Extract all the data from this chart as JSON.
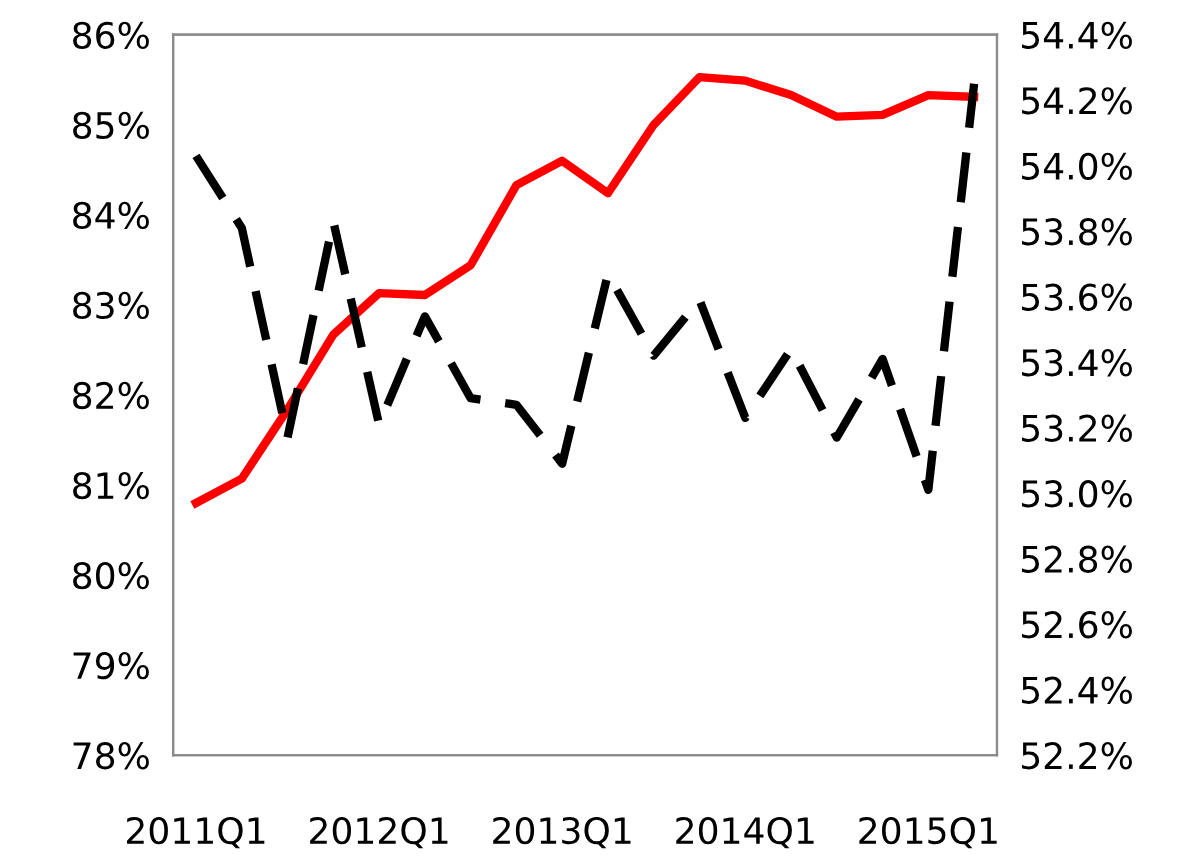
{
  "chart_data": {
    "type": "line",
    "categories": [
      "2011Q1",
      null,
      null,
      null,
      "2012Q1",
      null,
      null,
      null,
      "2013Q1",
      null,
      null,
      null,
      "2014Q1",
      null,
      null,
      null,
      "2015Q1",
      null
    ],
    "series": [
      {
        "color": "#ff0000",
        "line_style": "solid",
        "values": [
          80.8,
          81.07,
          81.84,
          82.67,
          83.13,
          83.11,
          83.44,
          84.33,
          84.6,
          84.24,
          85.0,
          85.53,
          85.49,
          85.33,
          85.09,
          85.11,
          85.33,
          85.31
        ]
      },
      {
        "color": "#000000",
        "line_style": "dashed",
        "axis": "y2",
        "values": [
          54.03,
          53.81,
          53.17,
          53.83,
          53.21,
          53.54,
          53.29,
          53.27,
          53.09,
          53.67,
          53.42,
          53.59,
          53.23,
          53.44,
          53.17,
          53.41,
          53.01,
          54.25
        ]
      }
    ],
    "ylim": [
      78,
      86
    ],
    "yticks": [
      {
        "value": 78,
        "label": "78%"
      },
      {
        "value": 79,
        "label": "79%"
      },
      {
        "value": 80,
        "label": "80%"
      },
      {
        "value": 81,
        "label": "81%"
      },
      {
        "value": 82,
        "label": "82%"
      },
      {
        "value": 83,
        "label": "83%"
      },
      {
        "value": 84,
        "label": "84%"
      },
      {
        "value": 85,
        "label": "85%"
      },
      {
        "value": 86,
        "label": "86%"
      }
    ],
    "y2lim": [
      52.2,
      54.4
    ],
    "y2ticks": [
      {
        "value": 52.2,
        "label": "52.2%"
      },
      {
        "value": 52.4,
        "label": "52.4%"
      },
      {
        "value": 52.6,
        "label": "52.6%"
      },
      {
        "value": 52.8,
        "label": "52.8%"
      },
      {
        "value": 53.0,
        "label": "53.0%"
      },
      {
        "value": 53.2,
        "label": "53.2%"
      },
      {
        "value": 53.4,
        "label": "53.4%"
      },
      {
        "value": 53.6,
        "label": "53.6%"
      },
      {
        "value": 53.8,
        "label": "53.8%"
      },
      {
        "value": 54.0,
        "label": "54.0%"
      },
      {
        "value": 54.2,
        "label": "54.2%"
      },
      {
        "value": 54.4,
        "label": "54.4%"
      }
    ],
    "grid": false,
    "legend": false,
    "marker": "none"
  }
}
